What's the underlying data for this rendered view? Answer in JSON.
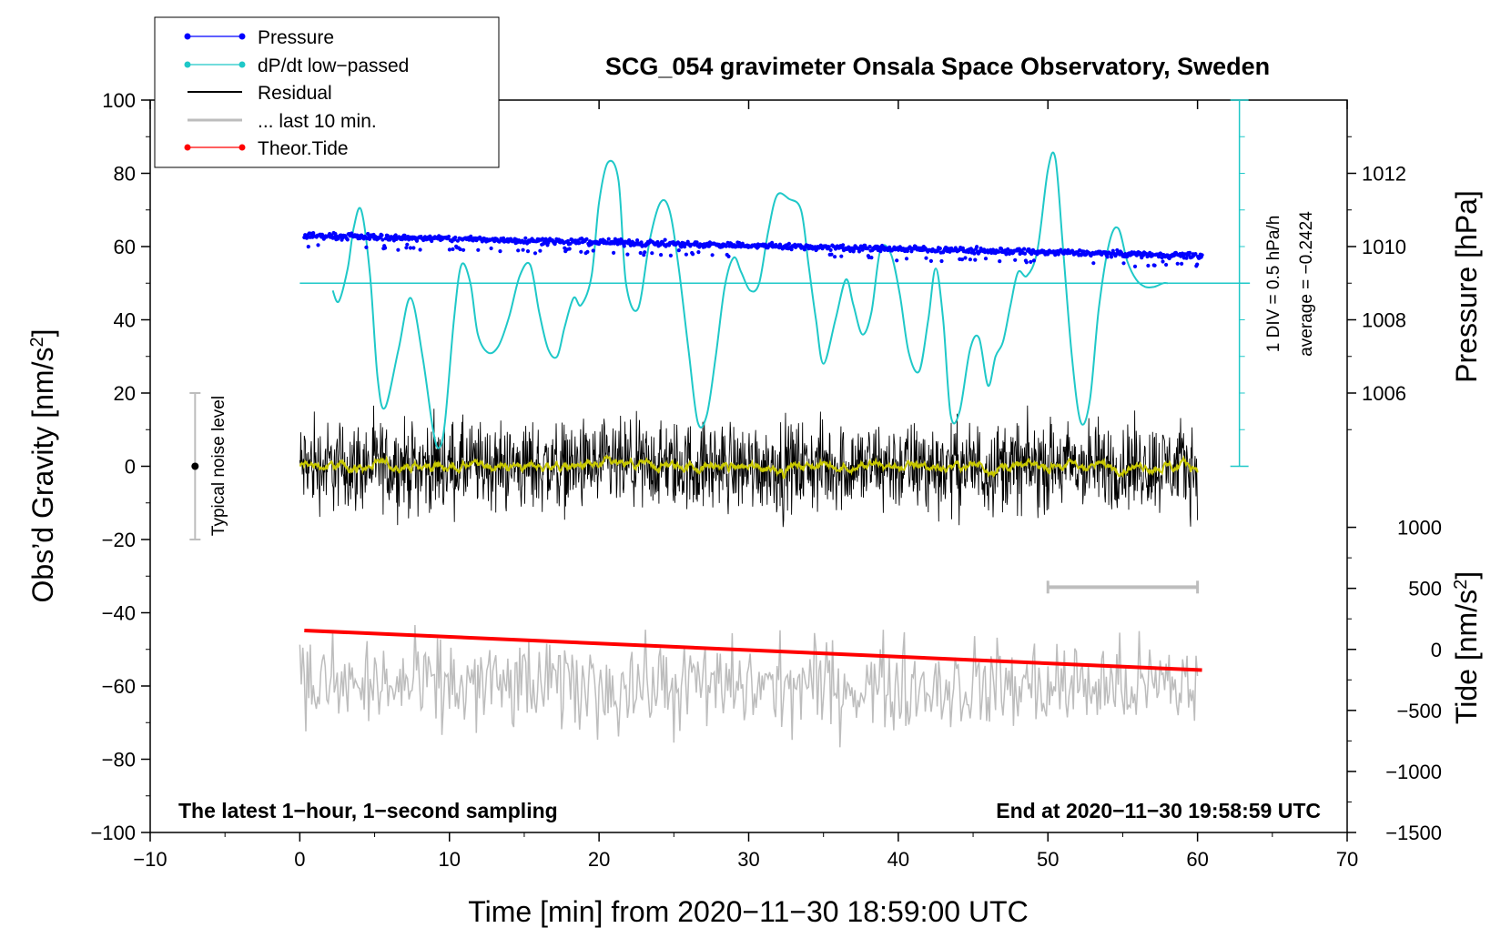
{
  "chart_data": {
    "type": "line",
    "title": "SCG_054 gravimeter Onsala Space Observatory, Sweden",
    "xlabel": "Time [min] from 2020−11−30 18:59:00 UTC",
    "ylabel_left": "Obs’d Gravity [nm/s",
    "ylabel_left_sup": "2",
    "ylabel_left_close": "]",
    "ylabel_pressure": "Pressure [hPa]",
    "ylabel_tide": "Tide [nm/s",
    "ylabel_tide_sup": "2",
    "ylabel_tide_close": "]",
    "xlim": [
      -10,
      70
    ],
    "ylim": [
      -100,
      100
    ],
    "x_ticks": [
      "−10",
      "0",
      "10",
      "20",
      "30",
      "40",
      "50",
      "60",
      "70"
    ],
    "y_ticks": [
      "−100",
      "−80",
      "−60",
      "−40",
      "−20",
      "0",
      "20",
      "40",
      "60",
      "80",
      "100"
    ],
    "pressure_ticks": [
      "1006",
      "1008",
      "1010",
      "1012"
    ],
    "tide_ticks": [
      "−1500",
      "−1000",
      "−500",
      "0",
      "500",
      "1000"
    ],
    "legend": [
      {
        "label": "Pressure",
        "color": "#0000ff",
        "marker": true
      },
      {
        "label": "dP/dt low−passed",
        "color": "#1fc8c8",
        "marker": true
      },
      {
        "label": "Residual",
        "color": "#000000",
        "marker": false
      },
      {
        "label": "... last 10 min.",
        "color": "#bdbdbd",
        "marker": false
      },
      {
        "label": "Theor.Tide",
        "color": "#ff0000",
        "marker": true
      }
    ],
    "annotations": {
      "bottom_left": "The latest 1−hour, 1−second sampling",
      "bottom_right": "End at 2020−11−30 19:58:59 UTC",
      "noise": "Typical noise level",
      "scale_div": "1 DIV = 0.5 hPa/h",
      "scale_avg": "average = −0.2424"
    },
    "noise_bar": {
      "x": -7,
      "center": 0,
      "half_range": 20
    },
    "last10_bar": {
      "x_start": 50,
      "x_end": 60,
      "y_value": -33
    },
    "pressure_series": {
      "name": "Pressure",
      "unit": "hPa",
      "x_range": [
        0.3,
        60.3
      ],
      "start": 1010.3,
      "end": 1009.75
    },
    "dpdt_series": {
      "name": "dP/dt low−passed",
      "baseline": 50,
      "x": [
        2.2,
        2.6,
        3.2,
        3.6,
        4.1,
        4.7,
        5.2,
        5.7,
        6.6,
        7.4,
        8.2,
        8.9,
        9.3,
        9.7,
        10.3,
        10.8,
        11.4,
        11.9,
        12.6,
        13.3,
        14.0,
        14.7,
        15.4,
        16.0,
        16.6,
        17.2,
        17.7,
        18.3,
        18.8,
        19.5,
        20.0,
        20.6,
        21.3,
        21.8,
        22.6,
        23.4,
        24.1,
        24.7,
        25.3,
        26.0,
        26.6,
        27.2,
        27.8,
        28.4,
        29.0,
        29.5,
        30.1,
        30.7,
        31.3,
        31.9,
        32.7,
        33.5,
        34.0,
        34.5,
        35.0,
        35.8,
        36.5,
        37.0,
        37.6,
        38.2,
        38.8,
        39.5,
        40.1,
        40.7,
        41.4,
        42.0,
        42.5,
        43.0,
        43.5,
        44.1,
        44.8,
        45.4,
        46.0,
        46.5,
        47.0,
        47.5,
        48.0,
        48.6,
        49.3,
        50.0,
        50.5,
        51.0,
        51.6,
        52.2,
        52.8,
        53.4,
        54.1,
        54.7,
        55.3,
        55.9,
        56.5,
        57.1,
        57.7,
        58.0
      ],
      "y": [
        48,
        45,
        54,
        65,
        70,
        52,
        24,
        16,
        32,
        46,
        30,
        10,
        5,
        12,
        40,
        55,
        50,
        36,
        31,
        33,
        41,
        52,
        55,
        42,
        32,
        30,
        38,
        46,
        44,
        52,
        72,
        83,
        78,
        50,
        43,
        62,
        72,
        70,
        55,
        31,
        12,
        14,
        30,
        49,
        57,
        53,
        48,
        50,
        64,
        74,
        73,
        70,
        55,
        40,
        28,
        40,
        51,
        44,
        36,
        42,
        59,
        58,
        47,
        31,
        26,
        40,
        54,
        40,
        14,
        15,
        32,
        35,
        22,
        30,
        34,
        44,
        53,
        52,
        59,
        81,
        84,
        60,
        30,
        12,
        18,
        43,
        61,
        65,
        56,
        51,
        49,
        49,
        50,
        50
      ]
    },
    "residual_series": {
      "name": "Residual",
      "x_range": [
        0,
        60
      ],
      "amplitude": 20,
      "smooth_color": "#c8c800"
    },
    "last10_series": {
      "name": "... last 10 min.",
      "x_range": [
        0,
        60
      ],
      "center": -60,
      "amplitude": 22
    },
    "tide_series": {
      "name": "Theor.Tide",
      "x": [
        0.3,
        60.3
      ],
      "y_nm_s2": [
        155,
        -170
      ]
    },
    "colors": {
      "pressure": "#0000ff",
      "dpdt": "#1fc8c8",
      "residual": "#000000",
      "residual_smooth": "#c8c800",
      "last10": "#bdbdbd",
      "tide": "#ff0000",
      "noise_bar": "#bdbdbd"
    }
  }
}
